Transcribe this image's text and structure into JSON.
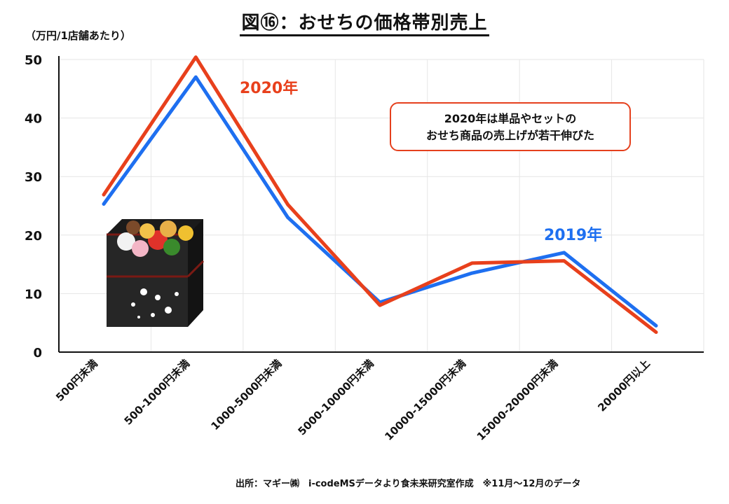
{
  "title": "図⑯：おせちの価格帯別売上",
  "unit_label": "（万円/1店舗あたり）",
  "note": {
    "line1": "2020年は単品やセットの",
    "line2": "おせち商品の売上げが若干伸びた"
  },
  "source": "出所：マギー㈱　i-codeMSデータより食未来研究室作成　※11月～12月のデータ",
  "chart_data": {
    "type": "line",
    "categories": [
      "500円未満",
      "500-1000円未満",
      "1000-5000円未満",
      "5000-10000円未満",
      "10000-15000円未満",
      "15000-20000円未満",
      "20000円以上"
    ],
    "ylim": [
      0,
      50
    ],
    "yticks": [
      0,
      10,
      20,
      30,
      40,
      50
    ],
    "grid": true,
    "series": [
      {
        "name": "2019年",
        "color": "#1e6ff0",
        "values": [
          25.3,
          47,
          23,
          8.5,
          13.5,
          17,
          4.5
        ]
      },
      {
        "name": "2020年",
        "color": "#e8401c",
        "values": [
          26.9,
          50.4,
          25.2,
          8.0,
          15.2,
          15.6,
          3.4
        ]
      }
    ]
  }
}
